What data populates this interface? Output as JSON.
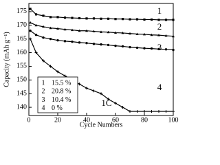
{
  "chart_data": {
    "type": "line",
    "x_label": "Cycle Numbers",
    "y_label": "Capacity (mAh g⁻¹)",
    "x": [
      1,
      5,
      10,
      15,
      20,
      25,
      30,
      35,
      40,
      45,
      50,
      55,
      60,
      65,
      70,
      75,
      80,
      85,
      90,
      95,
      100
    ],
    "series": [
      {
        "name": "1",
        "color": "#000000",
        "marker": "square",
        "values": [
          176,
          174,
          173.5,
          173,
          173,
          172.8,
          172.7,
          172.6,
          172.5,
          172.5,
          172.4,
          172.4,
          172.3,
          172.3,
          172.2,
          172.2,
          172.1,
          172.1,
          172,
          172,
          172
        ]
      },
      {
        "name": "2",
        "color": "#000000",
        "marker": "triangle",
        "values": [
          171,
          170,
          169.5,
          169,
          168.8,
          168.5,
          168.3,
          168,
          168,
          167.8,
          167.6,
          167.5,
          167.3,
          167.2,
          167,
          166.8,
          166.7,
          166.5,
          166.4,
          166.2,
          166
        ]
      },
      {
        "name": "3",
        "color": "#000000",
        "marker": "circle",
        "values": [
          168,
          166.5,
          165.5,
          165,
          164.5,
          164.2,
          164,
          163.7,
          163.5,
          163.2,
          163,
          162.8,
          162.5,
          162.3,
          162,
          161.8,
          161.6,
          161.5,
          161.3,
          161.2,
          161
        ]
      },
      {
        "name": "4",
        "color": "#000000",
        "marker": "star",
        "values": [
          165,
          160,
          157,
          155,
          153,
          151.5,
          150,
          148.5,
          147,
          146,
          145,
          143,
          141.5,
          140,
          138.5,
          138.5,
          138.5,
          138.5,
          138.5,
          138.5,
          138.5
        ]
      }
    ],
    "legend_rows": [
      [
        "1",
        "15.5 %"
      ],
      [
        "2",
        "20.8 %"
      ],
      [
        "3",
        "10.4 %"
      ],
      [
        "4",
        "0 %"
      ]
    ],
    "annotations": [
      "1",
      "2",
      "3",
      "4",
      "1C"
    ],
    "xlim": [
      0,
      100
    ],
    "xticks": [
      0,
      20,
      40,
      60,
      80,
      100
    ],
    "ylim": [
      137,
      178
    ],
    "yticks": [
      140,
      145,
      150,
      155,
      160,
      165,
      170,
      175
    ]
  }
}
